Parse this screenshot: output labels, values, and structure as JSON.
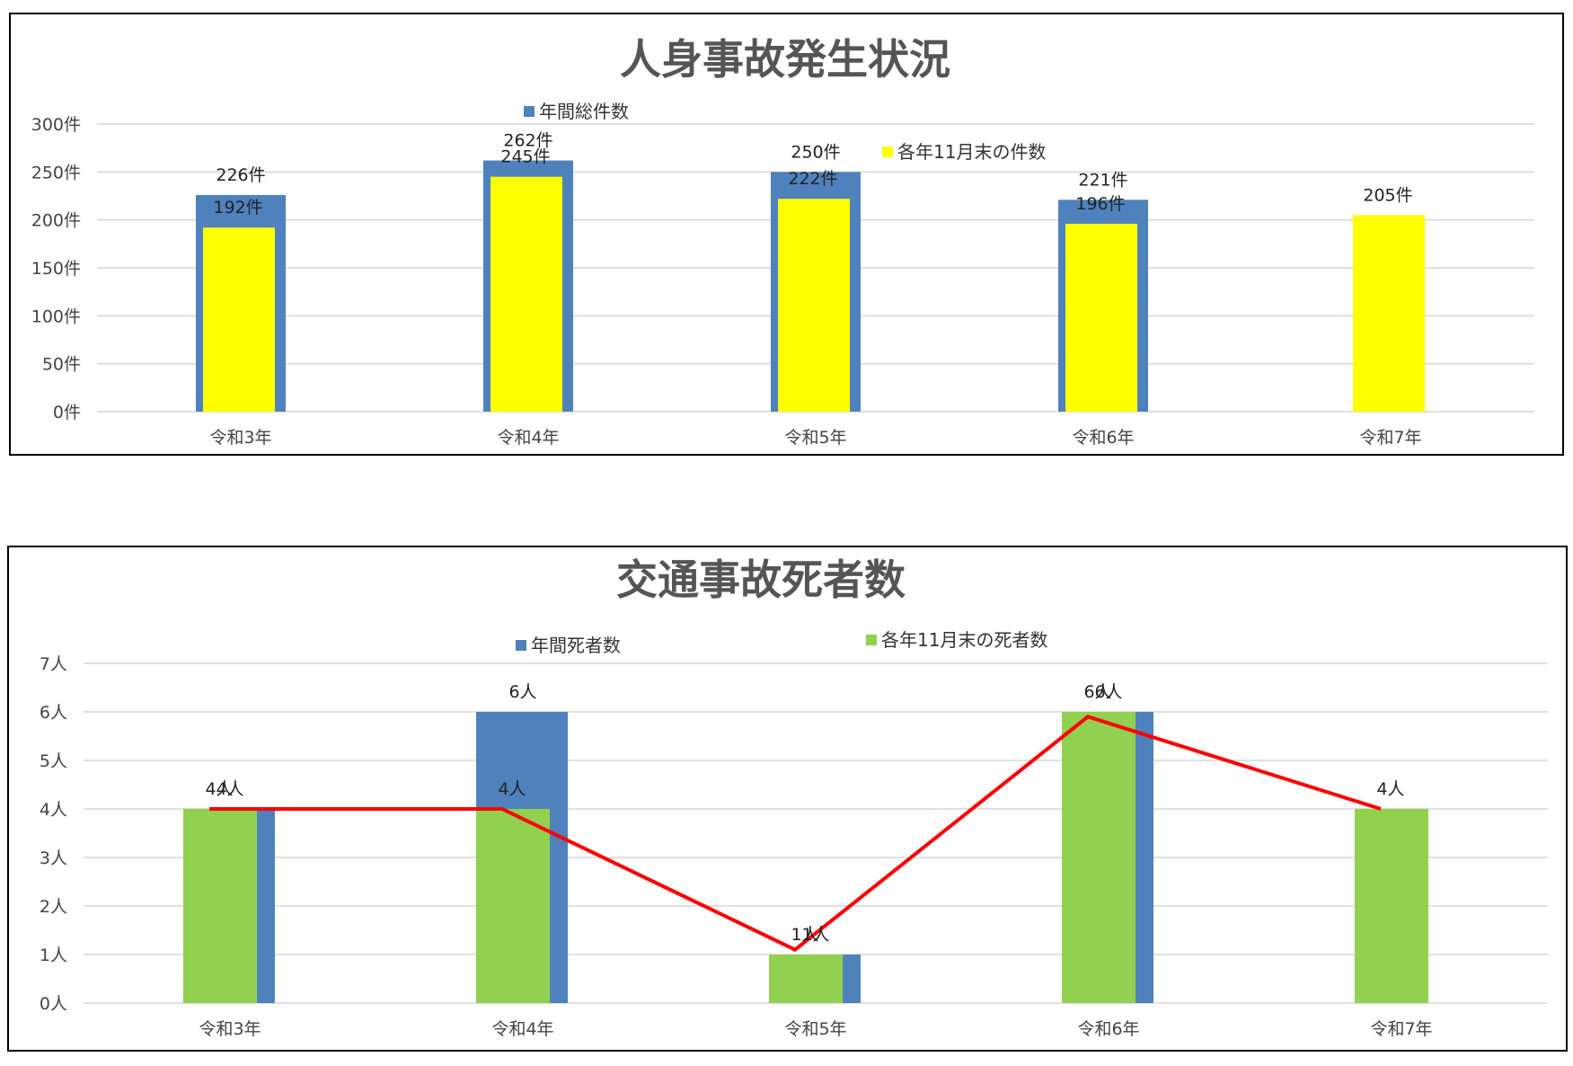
{
  "chart_data": [
    {
      "type": "bar",
      "title": "人身事故発生状況",
      "categories": [
        "令和3年",
        "令和4年",
        "令和5年",
        "令和6年",
        "令和7年"
      ],
      "ylim": [
        0,
        300
      ],
      "yticks": [
        0,
        50,
        100,
        150,
        200,
        250,
        300
      ],
      "ytick_labels": [
        "0件",
        "50件",
        "100件",
        "150件",
        "200件",
        "250件",
        "300件"
      ],
      "unit": "件",
      "grid": true,
      "series": [
        {
          "name": "年間総件数",
          "color": "#4f81bd",
          "values": [
            226,
            262,
            250,
            221,
            null
          ],
          "labels": [
            "226件",
            "262件",
            "250件",
            "221件",
            ""
          ]
        },
        {
          "name": "各年11月末の件数",
          "color": "#ffff00",
          "values": [
            192,
            245,
            222,
            196,
            205
          ],
          "labels": [
            "192件",
            "245件",
            "222件",
            "196件",
            "205件"
          ]
        }
      ]
    },
    {
      "type": "bar",
      "title": "交通事故死者数",
      "categories": [
        "令和3年",
        "令和4年",
        "令和5年",
        "令和6年",
        "令和7年"
      ],
      "ylim": [
        0,
        7
      ],
      "yticks": [
        0,
        1,
        2,
        3,
        4,
        5,
        6,
        7
      ],
      "ytick_labels": [
        "0人",
        "1人",
        "2人",
        "3人",
        "4人",
        "5人",
        "6人",
        "7人"
      ],
      "unit": "人",
      "grid": true,
      "series": [
        {
          "name": "年間死者数",
          "color": "#4f81bd",
          "values": [
            4,
            6,
            1,
            6,
            null
          ],
          "labels": [
            "4人",
            "6人",
            "1人",
            "6人",
            ""
          ]
        },
        {
          "name": "各年11月末の死者数",
          "color": "#92d050",
          "values": [
            4,
            4,
            1,
            6,
            4
          ],
          "labels": [
            "4人",
            "4人",
            "1人",
            "6人",
            "4人"
          ]
        }
      ],
      "line": {
        "color": "#ff0000",
        "values": [
          4,
          4,
          1.1,
          5.9,
          4
        ]
      }
    }
  ]
}
